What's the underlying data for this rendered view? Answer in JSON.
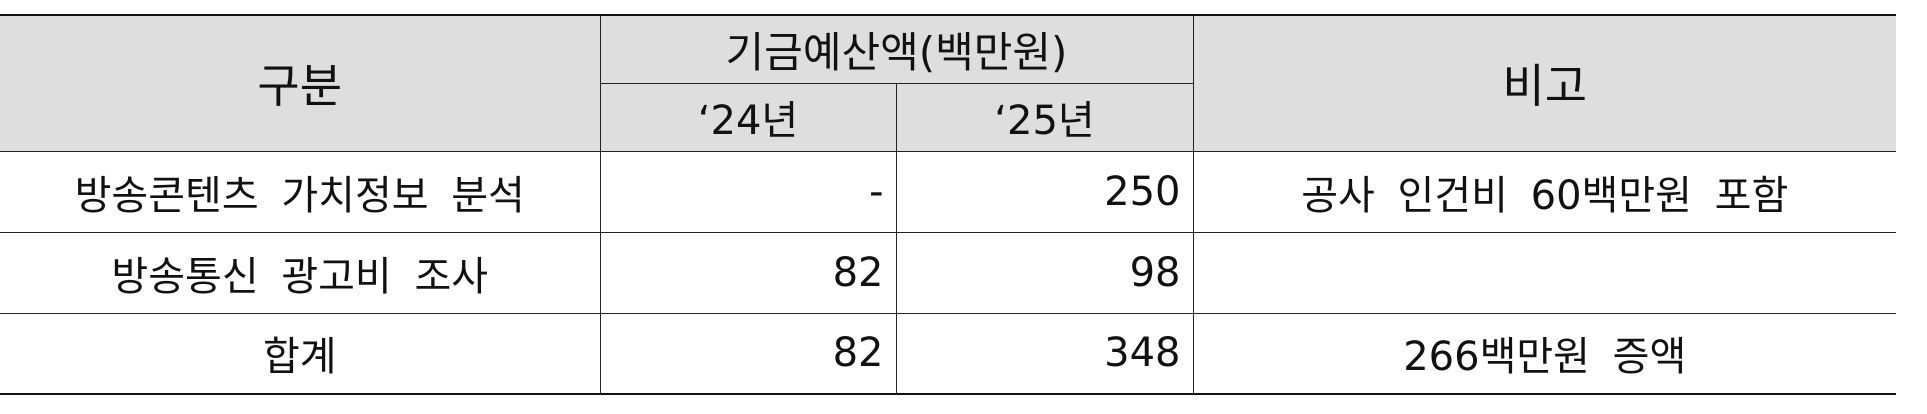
{
  "table": {
    "headers": {
      "category": "구분",
      "budget_group": "기금예산액(백만원)",
      "year_2024": "‘24년",
      "year_2025": "‘25년",
      "remarks": "비고"
    },
    "rows": [
      {
        "category": "방송콘텐츠 가치정보 분석",
        "y2024": "-",
        "y2025": "250",
        "remarks": "공사 인건비 60백만원 포함"
      },
      {
        "category": "방송통신 광고비 조사",
        "y2024": "82",
        "y2025": "98",
        "remarks": ""
      },
      {
        "category": "합계",
        "y2024": "82",
        "y2025": "348",
        "remarks": "266백만원 증액"
      }
    ]
  }
}
